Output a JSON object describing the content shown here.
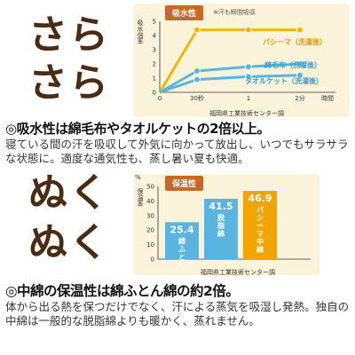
{
  "section1": {
    "big_word_1": "さら",
    "big_word_2": "さら",
    "chart_label": "吸水性",
    "note": "※汗も瞬間吸収",
    "y_unit": "吸水倍率",
    "source": "福岡県工業技術センター調",
    "headline": "◎吸水性は綿毛布やタオルケットの2倍以上。",
    "body": "寝ている間の汗を吸収して外気に向かって放出し、いつでもサラサラな状態に。適度な通気性も、蒸し暑い夏も快適。"
  },
  "section2": {
    "big_word_1": "ぬく",
    "big_word_2": "ぬく",
    "chart_label": "保温性",
    "y_unit": "保温率",
    "percent_unit": "%",
    "source": "福岡県工業技術センター調",
    "headline": "◎中綿の保温性は綿ふとん綿の約2倍。",
    "body": "体から出る熱を保つだけでなく、汗による蒸気を吸湿し発熱。独自の中綿は一般的な脱脂綿よりも暖かく、蒸れません。"
  },
  "chart_data": [
    {
      "type": "line",
      "y_unit": "吸水倍率",
      "x": [
        "0",
        "30秒",
        "1",
        "2分"
      ],
      "x_suffix": "時間",
      "yticks": [
        "0",
        "1",
        "2",
        "3",
        "4",
        "5"
      ],
      "ylim": [
        0,
        5
      ],
      "series": [
        {
          "name": "パシーマ（洗濯後）",
          "color": "#f2b705",
          "values": [
            0,
            4.4,
            4.4,
            4.4
          ]
        },
        {
          "name": "綿毛布（洗濯後）",
          "color": "#5ab4e0",
          "values": [
            0,
            1.5,
            1.8,
            2.0
          ]
        },
        {
          "name": "タオルケット（洗濯後）",
          "color": "#5ab4e0",
          "values": [
            0,
            0.9,
            1.1,
            1.2
          ]
        }
      ]
    },
    {
      "type": "bar",
      "y_unit": "保温率",
      "yticks": [
        "0",
        "10",
        "20",
        "30",
        "40",
        "50"
      ],
      "ylim": [
        0,
        50
      ],
      "categories": [
        "綿ふとん綿",
        "脱脂綿",
        "パシーマ中綿"
      ],
      "values": [
        25.4,
        41.5,
        46.9
      ],
      "value_labels": [
        "25.4",
        "41.5",
        "46.9"
      ],
      "colors": [
        "#5ab4e0",
        "#5ab4e0",
        "#f2a400"
      ]
    }
  ]
}
